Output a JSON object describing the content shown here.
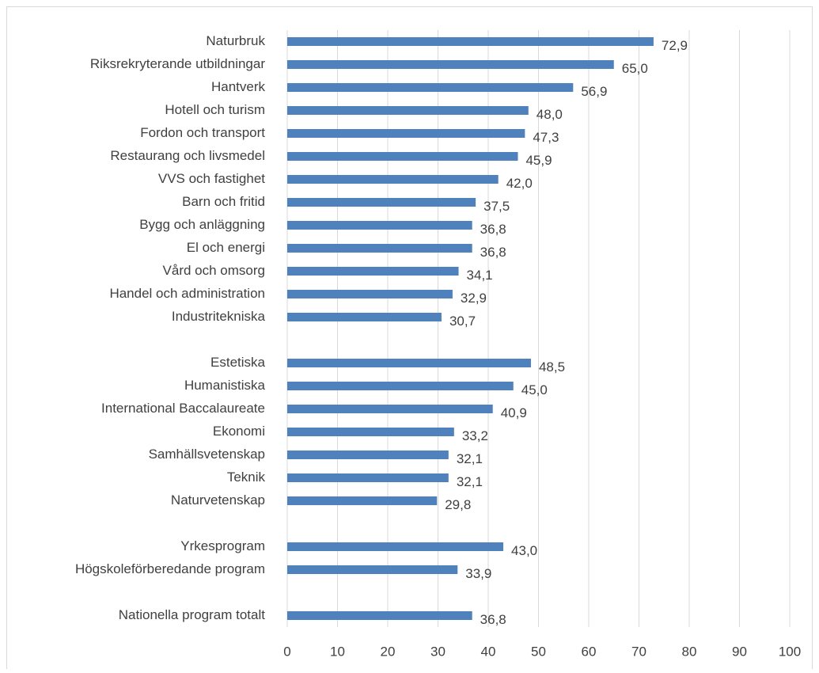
{
  "chart_data": {
    "type": "barh",
    "categories": [
      "Naturbruk",
      "Riksrekryterande utbildningar",
      "Hantverk",
      "Hotell och turism",
      "Fordon och transport",
      "Restaurang och livsmedel",
      "VVS och fastighet",
      "Barn och fritid",
      "Bygg och anläggning",
      "El och energi",
      "Vård och omsorg",
      "Handel och administration",
      "Industritekniska",
      null,
      "Estetiska",
      "Humanistiska",
      "International Baccalaureate",
      "Ekonomi",
      "Samhällsvetenskap",
      "Teknik",
      "Naturvetenskap",
      null,
      "Yrkesprogram",
      "Högskoleförberedande program",
      null,
      "Nationella program totalt"
    ],
    "values": [
      72.9,
      65.0,
      56.9,
      48.0,
      47.3,
      45.9,
      42.0,
      37.5,
      36.8,
      36.8,
      34.1,
      32.9,
      30.7,
      null,
      48.5,
      45.0,
      40.9,
      33.2,
      32.1,
      32.1,
      29.8,
      null,
      43.0,
      33.9,
      null,
      36.8
    ],
    "value_labels": [
      "72,9",
      "65,0",
      "56,9",
      "48,0",
      "47,3",
      "45,9",
      "42,0",
      "37,5",
      "36,8",
      "36,8",
      "34,1",
      "32,9",
      "30,7",
      null,
      "48,5",
      "45,0",
      "40,9",
      "33,2",
      "32,1",
      "32,1",
      "29,8",
      null,
      "43,0",
      "33,9",
      null,
      "36,8"
    ],
    "color": "#4f81bd",
    "xlim": [
      0,
      100
    ],
    "xticks": [
      0,
      10,
      20,
      30,
      40,
      50,
      60,
      70,
      80,
      90,
      100
    ],
    "grid": true
  }
}
